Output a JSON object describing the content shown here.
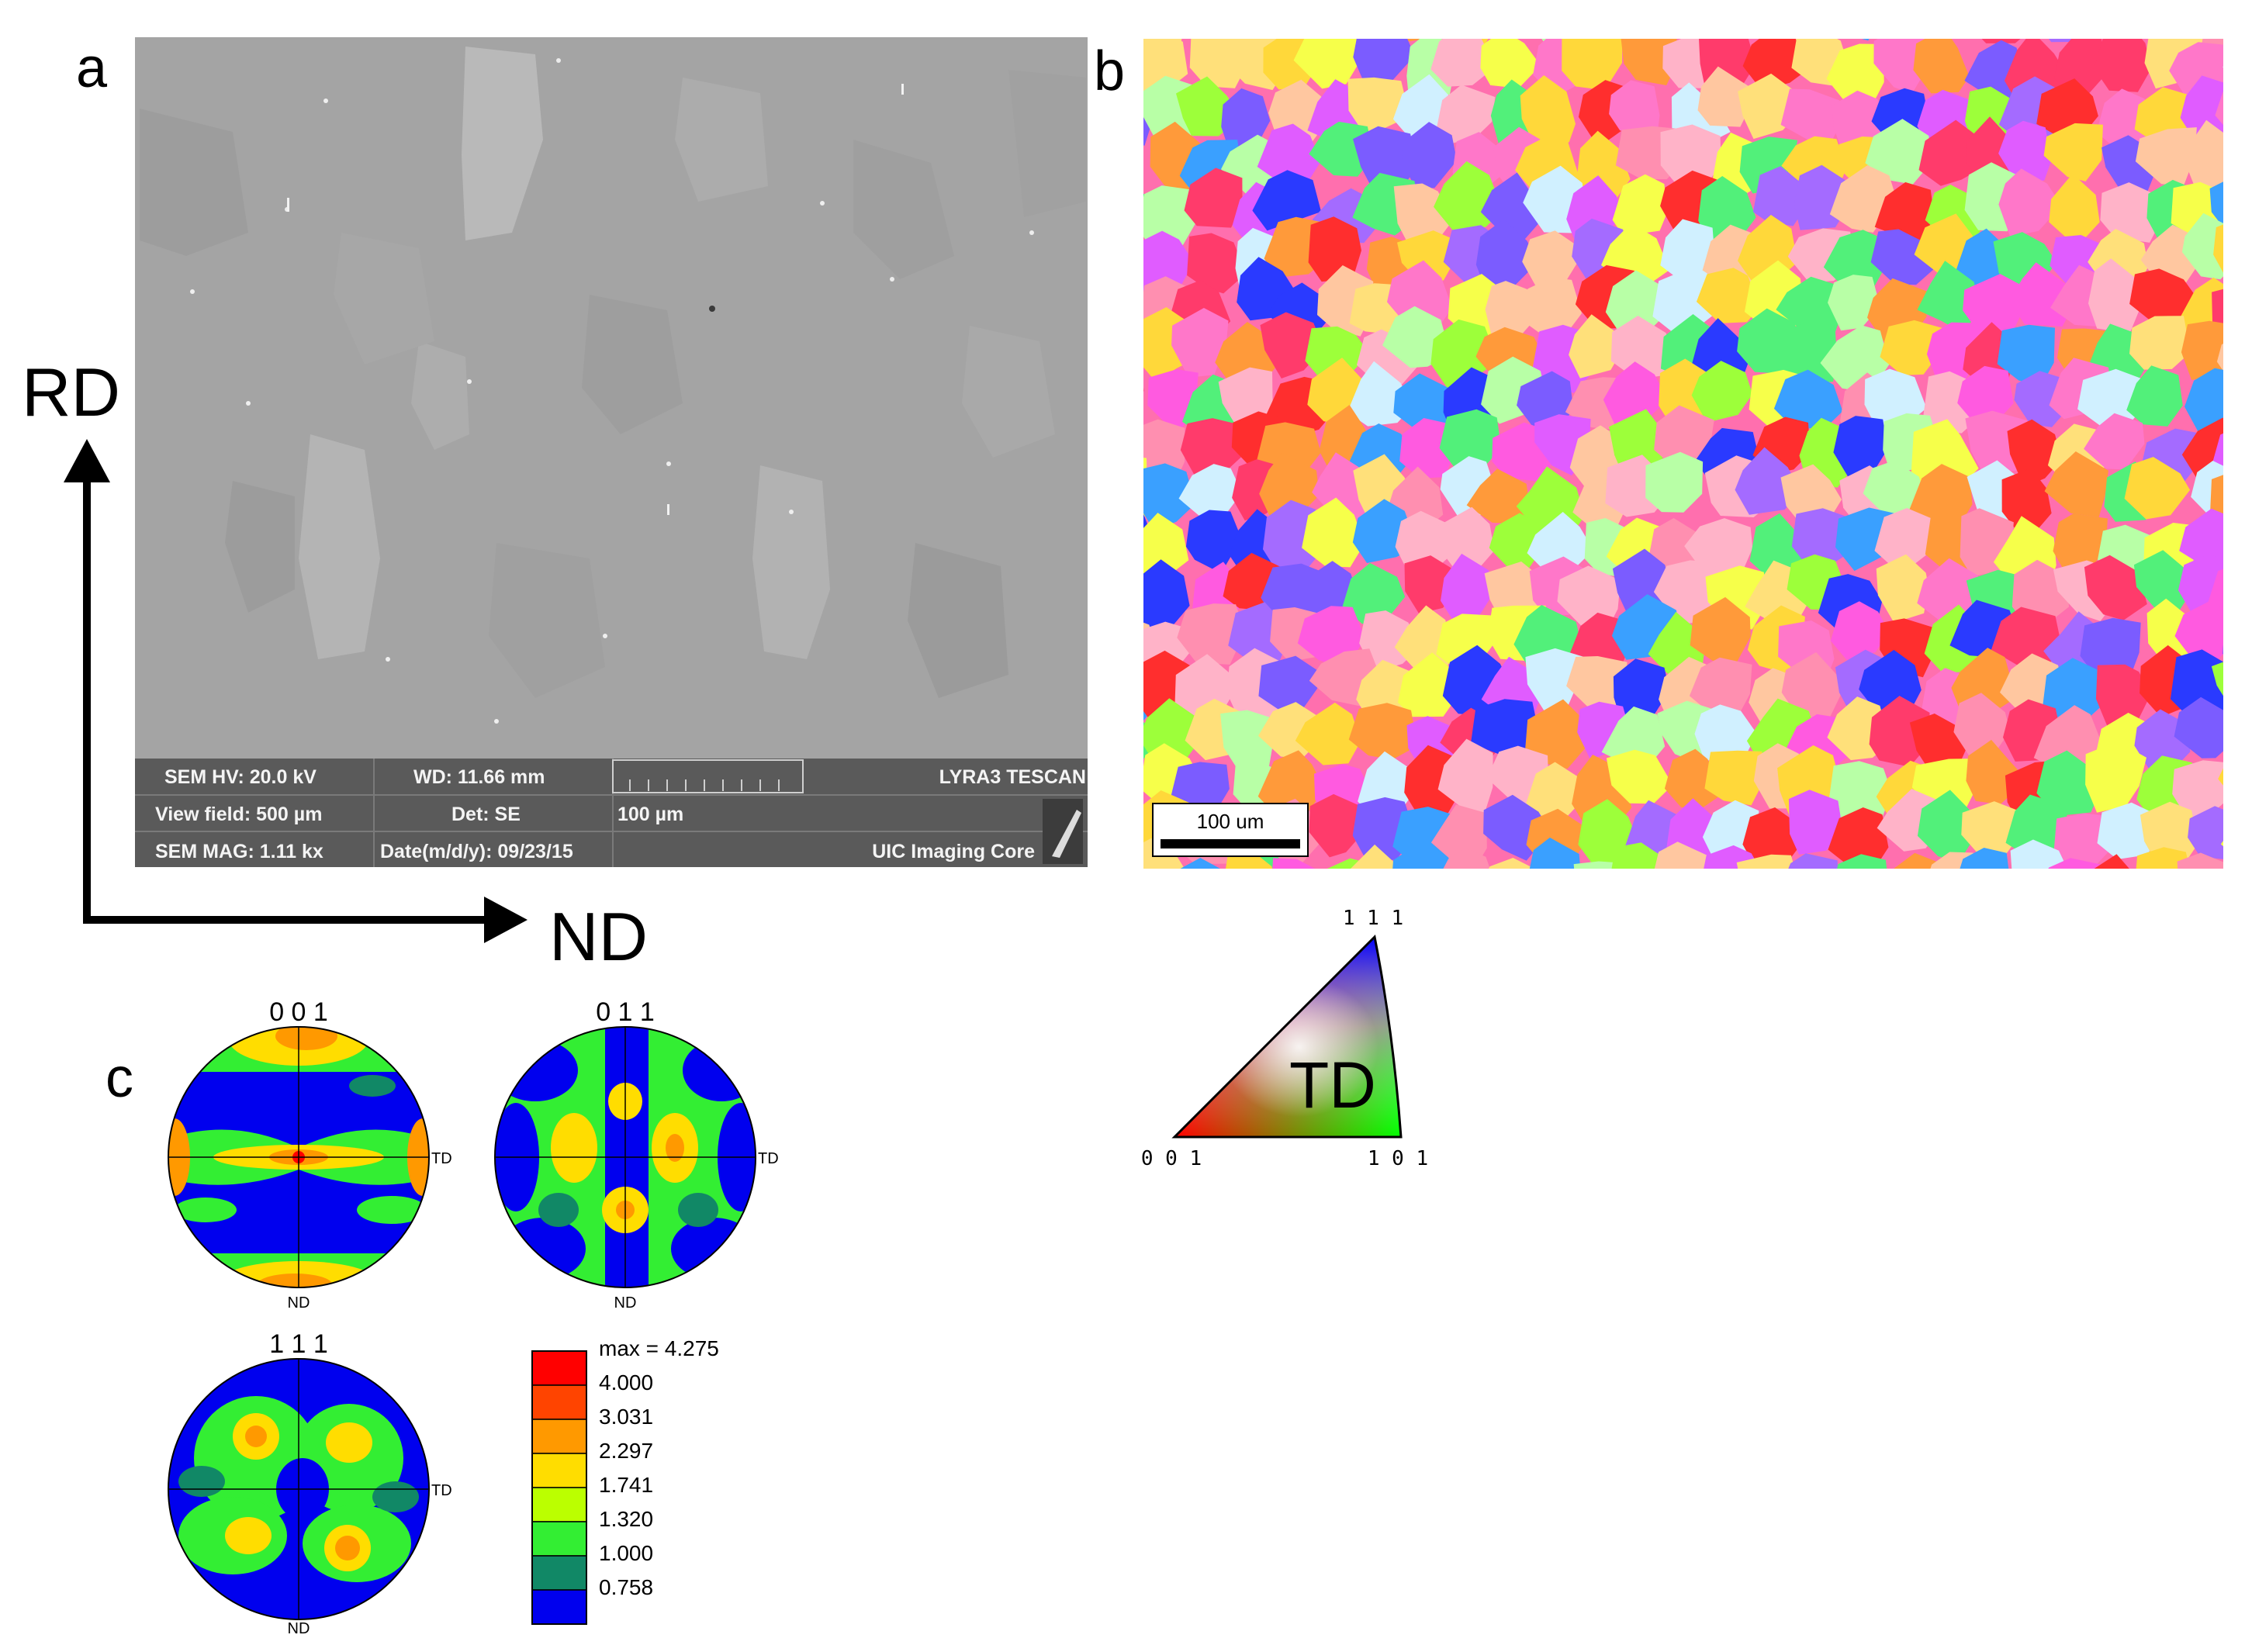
{
  "panels": {
    "a": {
      "label": "a",
      "info_bar": {
        "hv": "SEM HV: 20.0 kV",
        "wd": "WD: 11.66 mm",
        "instrument": "LYRA3 TESCAN",
        "view_field": "View field: 500 µm",
        "detector": "Det: SE",
        "scale_label": "100 µm",
        "mag": "SEM MAG: 1.11 kx",
        "date": "Date(m/d/y): 09/23/15",
        "facility": "UIC Imaging Core"
      }
    },
    "b": {
      "label": "b",
      "scale_label": "100 um"
    },
    "c": {
      "label": "c",
      "pole_figures": [
        {
          "title": "0 0 1",
          "right_label": "TD",
          "bottom_label": "ND"
        },
        {
          "title": "0 1 1",
          "right_label": "TD",
          "bottom_label": "ND"
        },
        {
          "title": "1 1 1",
          "right_label": "TD",
          "bottom_label": "ND"
        }
      ],
      "legend": {
        "entries": [
          "max = 4.275",
          "4.000",
          "3.031",
          "2.297",
          "1.741",
          "1.320",
          "1.000",
          "0.758"
        ],
        "colors": [
          "#ff0000",
          "#ff4400",
          "#ff9900",
          "#ffdd00",
          "#bbff00",
          "#33ee33",
          "#118866",
          "#0000ee"
        ]
      }
    }
  },
  "axes_arrows": {
    "vertical_label": "RD",
    "horizontal_label": "ND"
  },
  "ipf_key": {
    "top_label": "1 1 1",
    "left_label": "0 0 1",
    "right_label": "1 0 1",
    "center_label": "TD"
  },
  "colors": {
    "sem_background": "#a4a4a4",
    "info_bar": "#5a5a5a",
    "contour_blue": "#0000ee",
    "contour_green": "#33ee33",
    "contour_teal": "#118866",
    "contour_yellow": "#ffdd00",
    "contour_orange": "#ff9900",
    "contour_red": "#ff0000"
  }
}
